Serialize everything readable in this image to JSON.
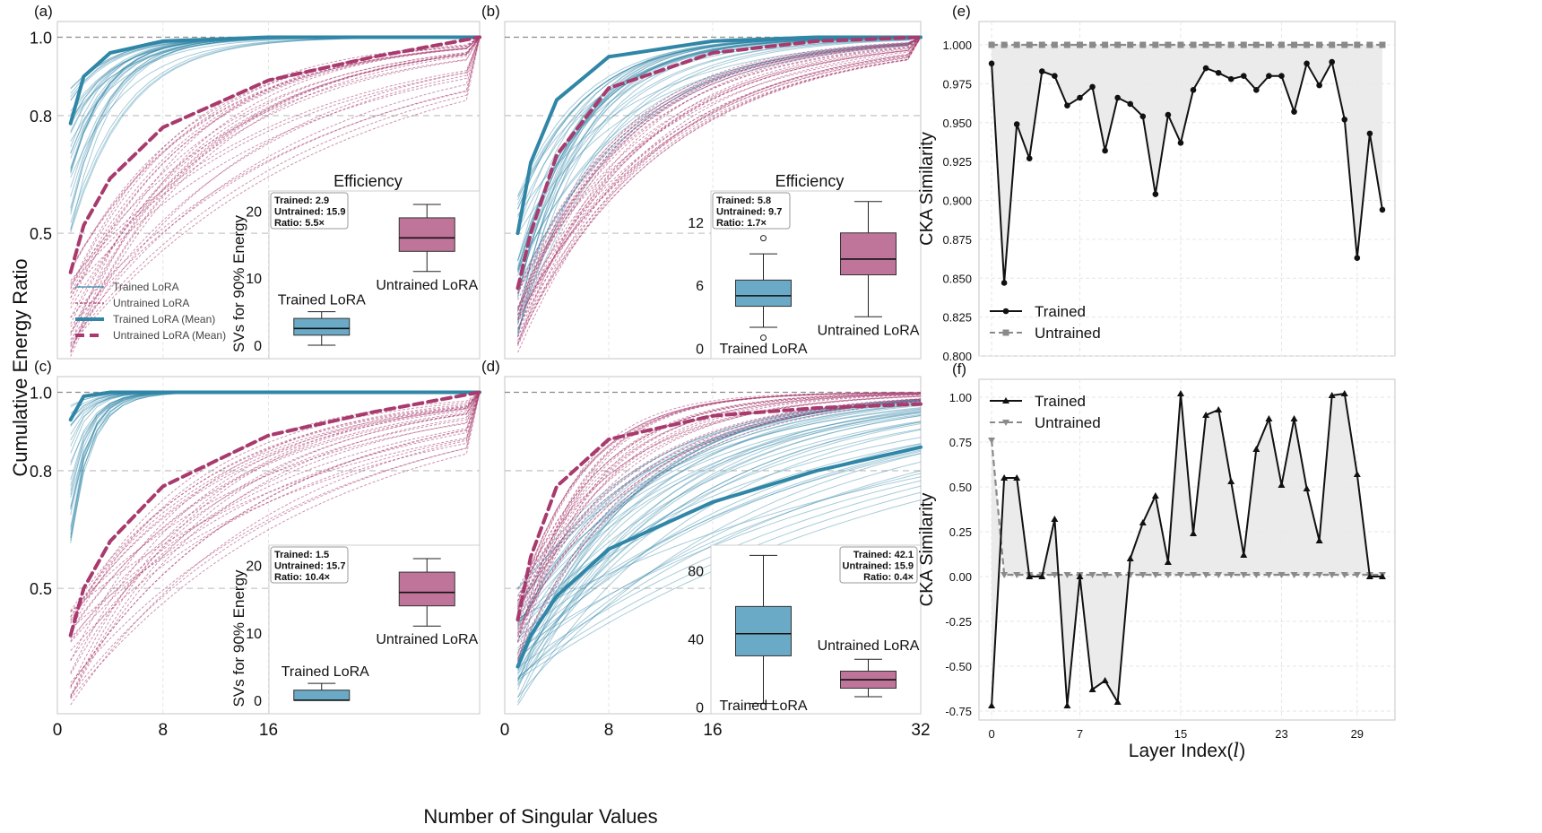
{
  "figure": {
    "shared_ylabel": "Cumulative Energy Ratio",
    "shared_xlabel": "Number of Singular Values",
    "shared_xticks": [
      "0",
      "8",
      "16",
      "32"
    ]
  },
  "colors": {
    "trained": "#2f86a6",
    "untrained": "#a83a6e",
    "trained_box": "#6aaac6",
    "untrained_box": "#bf7499",
    "cka": "#111111",
    "cka_untrained": "#8a8a8a",
    "fill": "#e9e9e9"
  },
  "chart_data": [
    {
      "id": "a",
      "panel_label": "(a)",
      "type": "line",
      "xlim": [
        0,
        32
      ],
      "ylim": [
        0.18,
        1.04
      ],
      "yticks": [
        0.5,
        0.8,
        1.0
      ],
      "ytick_labels": [
        "0.5",
        "0.8",
        "1.0"
      ],
      "reference_lines": [
        0.5,
        0.8
      ],
      "series": [
        {
          "name": "Trained LoRA",
          "style": "thin-solid",
          "count": 34,
          "init_range": [
            0.5,
            0.87
          ],
          "rate_range": [
            0.22,
            0.36
          ]
        },
        {
          "name": "Untrained LoRA",
          "style": "thin-dashed",
          "count": 30,
          "init_range": [
            0.18,
            0.42
          ],
          "rate_range": [
            0.05,
            0.12
          ]
        },
        {
          "name": "Trained LoRA (Mean)",
          "style": "thick-solid",
          "x": [
            1,
            2,
            4,
            8,
            16,
            24,
            32
          ],
          "y": [
            0.78,
            0.9,
            0.96,
            0.99,
            1.0,
            1.0,
            1.0
          ]
        },
        {
          "name": "Untrained LoRA (Mean)",
          "style": "thick-dashed",
          "x": [
            1,
            2,
            4,
            8,
            16,
            24,
            32
          ],
          "y": [
            0.4,
            0.52,
            0.64,
            0.77,
            0.89,
            0.95,
            1.0
          ]
        }
      ],
      "legend": [
        "Trained LoRA",
        "Untrained LoRA",
        "Trained LoRA (Mean)",
        "Untrained LoRA (Mean)"
      ],
      "inset": {
        "title": "Efficiency",
        "ylabel": "SVs for 90% Energy",
        "ylim": [
          -2,
          23
        ],
        "yticks": [
          0,
          10,
          20
        ],
        "ytick_labels": [
          "0",
          "10",
          "20"
        ],
        "stats": [
          "Trained: 2.9",
          "Untrained: 15.9",
          "Ratio: 5.5×"
        ],
        "boxes": [
          {
            "label": "Trained LoRA",
            "min": 0,
            "q1": 1.5,
            "median": 2.5,
            "q3": 4,
            "max": 5,
            "outliers": []
          },
          {
            "label": "Untrained LoRA",
            "min": 11,
            "q1": 14,
            "median": 16,
            "q3": 19,
            "max": 21,
            "outliers": []
          }
        ]
      }
    },
    {
      "id": "b",
      "panel_label": "(b)",
      "type": "line",
      "xlim": [
        0,
        32
      ],
      "ylim": [
        0.18,
        1.04
      ],
      "yticks": [
        0.5,
        0.8,
        1.0
      ],
      "ytick_labels": [
        "",
        "",
        ""
      ],
      "reference_lines": [
        0.5,
        0.8
      ],
      "series": [
        {
          "name": "Trained LoRA",
          "style": "thin-solid",
          "count": 38,
          "init_range": [
            0.22,
            0.6
          ],
          "rate_range": [
            0.1,
            0.24
          ]
        },
        {
          "name": "Untrained LoRA",
          "style": "thin-dashed",
          "count": 30,
          "init_range": [
            0.18,
            0.36
          ],
          "rate_range": [
            0.08,
            0.14
          ]
        },
        {
          "name": "Trained LoRA (Mean)",
          "style": "thick-solid",
          "x": [
            1,
            2,
            4,
            8,
            16,
            24,
            32
          ],
          "y": [
            0.5,
            0.68,
            0.84,
            0.95,
            0.99,
            1.0,
            1.0
          ]
        },
        {
          "name": "Untrained LoRA (Mean)",
          "style": "thick-dashed",
          "x": [
            1,
            2,
            4,
            8,
            16,
            24,
            32
          ],
          "y": [
            0.36,
            0.5,
            0.7,
            0.87,
            0.96,
            0.99,
            1.0
          ]
        }
      ],
      "legend": [],
      "inset": {
        "title": "Efficiency",
        "ylabel": "",
        "ylim": [
          -1,
          15
        ],
        "yticks": [
          0,
          6,
          12
        ],
        "ytick_labels": [
          "0",
          "6",
          "12"
        ],
        "stats": [
          "Trained: 5.8",
          "Untrained: 9.7",
          "Ratio: 1.7×"
        ],
        "boxes": [
          {
            "label": "Trained LoRA",
            "min": 2,
            "q1": 4,
            "median": 5,
            "q3": 6.5,
            "max": 9,
            "outliers": [
              1,
              10.5
            ]
          },
          {
            "label": "Untrained LoRA",
            "min": 3,
            "q1": 7,
            "median": 8.5,
            "q3": 11,
            "max": 14,
            "outliers": []
          }
        ]
      }
    },
    {
      "id": "c",
      "panel_label": "(c)",
      "type": "line",
      "xlim": [
        0,
        32
      ],
      "ylim": [
        0.18,
        1.04
      ],
      "yticks": [
        0.5,
        0.8,
        1.0
      ],
      "ytick_labels": [
        "0.5",
        "0.8",
        "1.0"
      ],
      "reference_lines": [
        0.5,
        0.8
      ],
      "series": [
        {
          "name": "Trained LoRA",
          "style": "thin-solid",
          "count": 30,
          "init_range": [
            0.6,
            0.97
          ],
          "rate_range": [
            0.5,
            0.8
          ]
        },
        {
          "name": "Untrained LoRA",
          "style": "thin-dashed",
          "count": 30,
          "init_range": [
            0.2,
            0.45
          ],
          "rate_range": [
            0.05,
            0.11
          ]
        },
        {
          "name": "Trained LoRA (Mean)",
          "style": "thick-solid",
          "x": [
            1,
            2,
            4,
            8,
            16,
            24,
            32
          ],
          "y": [
            0.93,
            0.99,
            1.0,
            1.0,
            1.0,
            1.0,
            1.0
          ]
        },
        {
          "name": "Untrained LoRA (Mean)",
          "style": "thick-dashed",
          "x": [
            1,
            2,
            4,
            8,
            16,
            24,
            32
          ],
          "y": [
            0.38,
            0.5,
            0.62,
            0.76,
            0.89,
            0.95,
            1.0
          ]
        }
      ],
      "legend": [],
      "inset": {
        "title": "",
        "ylabel": "SVs for 90% Energy",
        "ylim": [
          -2,
          23
        ],
        "yticks": [
          0,
          10,
          20
        ],
        "ytick_labels": [
          "0",
          "10",
          "20"
        ],
        "stats": [
          "Trained: 1.5",
          "Untrained: 15.7",
          "Ratio: 10.4×"
        ],
        "boxes": [
          {
            "label": "Trained LoRA",
            "min": 0,
            "q1": 0,
            "median": 0,
            "q3": 1.5,
            "max": 2.5,
            "outliers": []
          },
          {
            "label": "Untrained LoRA",
            "min": 11,
            "q1": 14,
            "median": 16,
            "q3": 19,
            "max": 21,
            "outliers": []
          }
        ]
      }
    },
    {
      "id": "d",
      "panel_label": "(d)",
      "type": "line",
      "xlim": [
        0,
        32
      ],
      "ylim": [
        0.18,
        1.04
      ],
      "yticks": [
        0.5,
        0.8,
        1.0
      ],
      "ytick_labels": [
        "",
        "",
        ""
      ],
      "reference_lines": [
        0.5,
        0.8
      ],
      "series": [
        {
          "name": "Trained LoRA",
          "style": "thin-solid",
          "count": 48,
          "init_range": [
            0.2,
            0.5
          ],
          "rate_range": [
            0.03,
            0.12
          ]
        },
        {
          "name": "Untrained LoRA",
          "style": "thin-dashed",
          "count": 32,
          "init_range": [
            0.28,
            0.5
          ],
          "rate_range": [
            0.1,
            0.22
          ]
        },
        {
          "name": "Trained LoRA (Mean)",
          "style": "thick-solid",
          "x": [
            1,
            2,
            4,
            8,
            16,
            24,
            32
          ],
          "y": [
            0.3,
            0.38,
            0.48,
            0.6,
            0.72,
            0.8,
            0.86
          ]
        },
        {
          "name": "Untrained LoRA (Mean)",
          "style": "thick-dashed",
          "x": [
            1,
            2,
            4,
            8,
            16,
            24,
            32
          ],
          "y": [
            0.42,
            0.58,
            0.76,
            0.88,
            0.94,
            0.96,
            0.97
          ]
        }
      ],
      "legend": [],
      "inset": {
        "title": "",
        "ylabel": "",
        "ylim": [
          -4,
          95
        ],
        "yticks": [
          0,
          40,
          80
        ],
        "ytick_labels": [
          "0",
          "40",
          "80"
        ],
        "stats": [
          "Trained: 42.1",
          "Untrained: 15.9",
          "Ratio: 0.4×"
        ],
        "boxes": [
          {
            "label": "Trained LoRA",
            "min": 2,
            "q1": 30,
            "median": 43,
            "q3": 59,
            "max": 89,
            "outliers": []
          },
          {
            "label": "Untrained LoRA",
            "min": 6,
            "q1": 11,
            "median": 16,
            "q3": 21,
            "max": 28,
            "outliers": []
          }
        ]
      }
    },
    {
      "id": "e",
      "panel_label": "(e)",
      "type": "line",
      "ylabel": "CKA Similarity",
      "xlabel": "",
      "xlim": [
        -1,
        32
      ],
      "ylim": [
        0.8,
        1.015
      ],
      "yticks": [
        0.8,
        0.825,
        0.85,
        0.875,
        0.9,
        0.925,
        0.95,
        0.975,
        1.0
      ],
      "ytick_labels": [
        "0.800",
        "0.825",
        "0.850",
        "0.875",
        "0.900",
        "0.925",
        "0.950",
        "0.975",
        "1.000"
      ],
      "xticks": [
        0,
        7,
        15,
        23,
        29
      ],
      "xtick_labels": [],
      "legend_position": "bottom-left",
      "series": [
        {
          "name": "Trained",
          "marker": "circle",
          "style": "solid",
          "y": [
            0.988,
            0.847,
            0.949,
            0.927,
            0.983,
            0.98,
            0.961,
            0.966,
            0.973,
            0.932,
            0.966,
            0.962,
            0.954,
            0.904,
            0.955,
            0.937,
            0.971,
            0.985,
            0.982,
            0.978,
            0.98,
            0.971,
            0.98,
            0.98,
            0.957,
            0.988,
            0.974,
            0.989,
            0.952,
            0.863,
            0.943,
            0.894
          ]
        },
        {
          "name": "Untrained",
          "marker": "square",
          "style": "dashed",
          "y": [
            1.0,
            1.0,
            1.0,
            1.0,
            1.0,
            1.0,
            1.0,
            1.0,
            1.0,
            1.0,
            1.0,
            1.0,
            1.0,
            1.0,
            1.0,
            1.0,
            1.0,
            1.0,
            1.0,
            1.0,
            1.0,
            1.0,
            1.0,
            1.0,
            1.0,
            1.0,
            1.0,
            1.0,
            1.0,
            1.0,
            1.0,
            1.0
          ]
        }
      ]
    },
    {
      "id": "f",
      "panel_label": "(f)",
      "type": "line",
      "ylabel": "CKA Similarity",
      "xlabel": "Layer Index(",
      "xlabel_italic": "l",
      "xlabel_close": ")",
      "xlim": [
        -1,
        32
      ],
      "ylim": [
        -0.8,
        1.1
      ],
      "yticks": [
        -0.75,
        -0.5,
        -0.25,
        0.0,
        0.25,
        0.5,
        0.75,
        1.0
      ],
      "ytick_labels": [
        "-0.75",
        "-0.50",
        "-0.25",
        "0.00",
        "0.25",
        "0.50",
        "0.75",
        "1.00"
      ],
      "xticks": [
        0,
        7,
        15,
        23,
        29
      ],
      "xtick_labels": [
        "0",
        "7",
        "15",
        "23",
        "29"
      ],
      "legend_position": "top-left",
      "series": [
        {
          "name": "Trained",
          "marker": "triangle-up",
          "style": "solid",
          "y": [
            -0.72,
            0.55,
            0.55,
            0.0,
            0.0,
            0.32,
            -0.72,
            0.0,
            -0.63,
            -0.58,
            -0.7,
            0.1,
            0.3,
            0.45,
            0.08,
            1.02,
            0.24,
            0.9,
            0.93,
            0.53,
            0.12,
            0.71,
            0.88,
            0.51,
            0.88,
            0.49,
            0.2,
            1.01,
            1.02,
            0.57,
            0.0,
            0.0
          ]
        },
        {
          "name": "Untrained",
          "marker": "triangle-down",
          "style": "dashed",
          "y": [
            0.76,
            0.01,
            0.01,
            0.01,
            0.01,
            0.01,
            0.01,
            0.01,
            0.01,
            0.01,
            0.01,
            0.01,
            0.01,
            0.01,
            0.01,
            0.01,
            0.01,
            0.01,
            0.01,
            0.01,
            0.01,
            0.01,
            0.01,
            0.01,
            0.01,
            0.01,
            0.01,
            0.01,
            0.01,
            0.01,
            0.01,
            0.01
          ]
        }
      ]
    }
  ]
}
